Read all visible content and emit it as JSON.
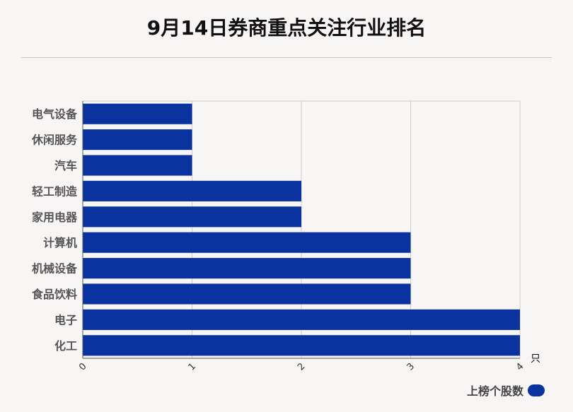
{
  "colors": {
    "bar": "#0b33a0",
    "grid": "#cfcccc",
    "axis": "#555555",
    "category_label": "#555555"
  },
  "chart_data": {
    "type": "bar",
    "orientation": "horizontal",
    "title": "9月14日券商重点关注行业排名",
    "categories": [
      "电气设备",
      "休闲服务",
      "汽车",
      "轻工制造",
      "家用电器",
      "计算机",
      "机械设备",
      "食品饮料",
      "电子",
      "化工"
    ],
    "series": [
      {
        "name": "上榜个股数",
        "values": [
          1,
          1,
          1,
          2,
          2,
          3,
          3,
          3,
          4,
          4
        ]
      }
    ],
    "x_ticks": [
      "0",
      "1",
      "2",
      "3",
      "4"
    ],
    "xlim": [
      0,
      4
    ],
    "x_unit": "只",
    "grid": true,
    "legend_position": "bottom-right"
  }
}
